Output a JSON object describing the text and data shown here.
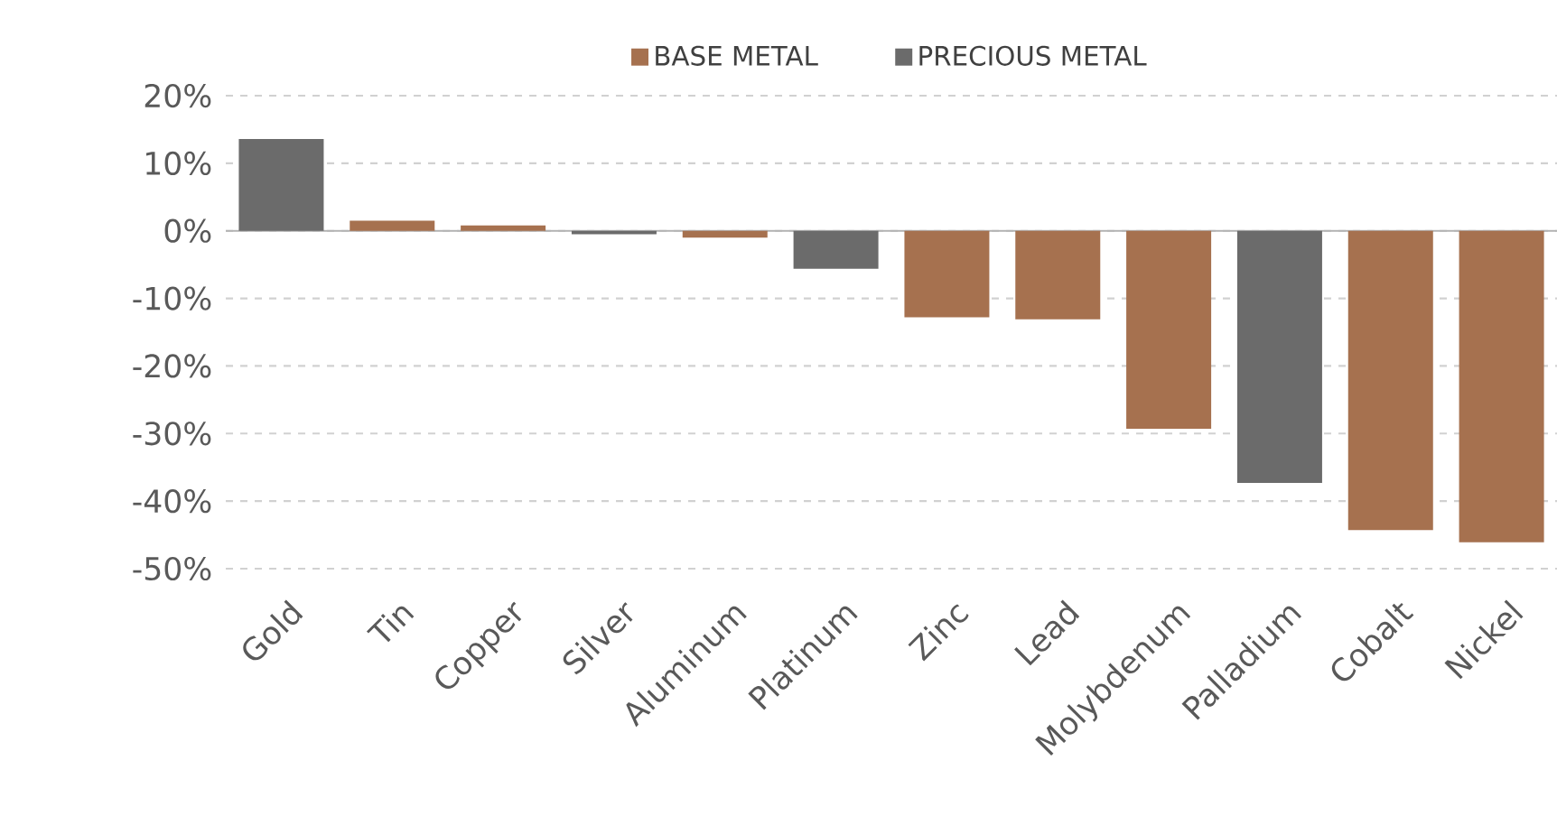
{
  "chart_data": {
    "type": "bar",
    "categories": [
      "Gold",
      "Tin",
      "Copper",
      "Silver",
      "Aluminum",
      "Platinum",
      "Zinc",
      "Lead",
      "Molybdenum",
      "Palladium",
      "Cobalt",
      "Nickel"
    ],
    "series": [
      {
        "name": "BASE METAL",
        "color": "#a6714f",
        "values": [
          null,
          1.5,
          0.8,
          null,
          -1.0,
          null,
          -12.8,
          -13.1,
          -29.3,
          null,
          -44.3,
          -46.1
        ]
      },
      {
        "name": "PRECIOUS METAL",
        "color": "#6b6b6b",
        "values": [
          13.6,
          null,
          null,
          -0.5,
          null,
          -5.6,
          null,
          null,
          null,
          -37.3,
          null,
          null
        ]
      }
    ],
    "ylim": [
      -50,
      20
    ],
    "yticks": [
      {
        "value": 20,
        "label": "20%"
      },
      {
        "value": 10,
        "label": "10%"
      },
      {
        "value": 0,
        "label": "0%"
      },
      {
        "value": -10,
        "label": "-10%"
      },
      {
        "value": -20,
        "label": "-20%"
      },
      {
        "value": -30,
        "label": "-30%"
      },
      {
        "value": -40,
        "label": "-40%"
      },
      {
        "value": -50,
        "label": "-50%"
      }
    ],
    "grid": "y",
    "legend": "top"
  }
}
